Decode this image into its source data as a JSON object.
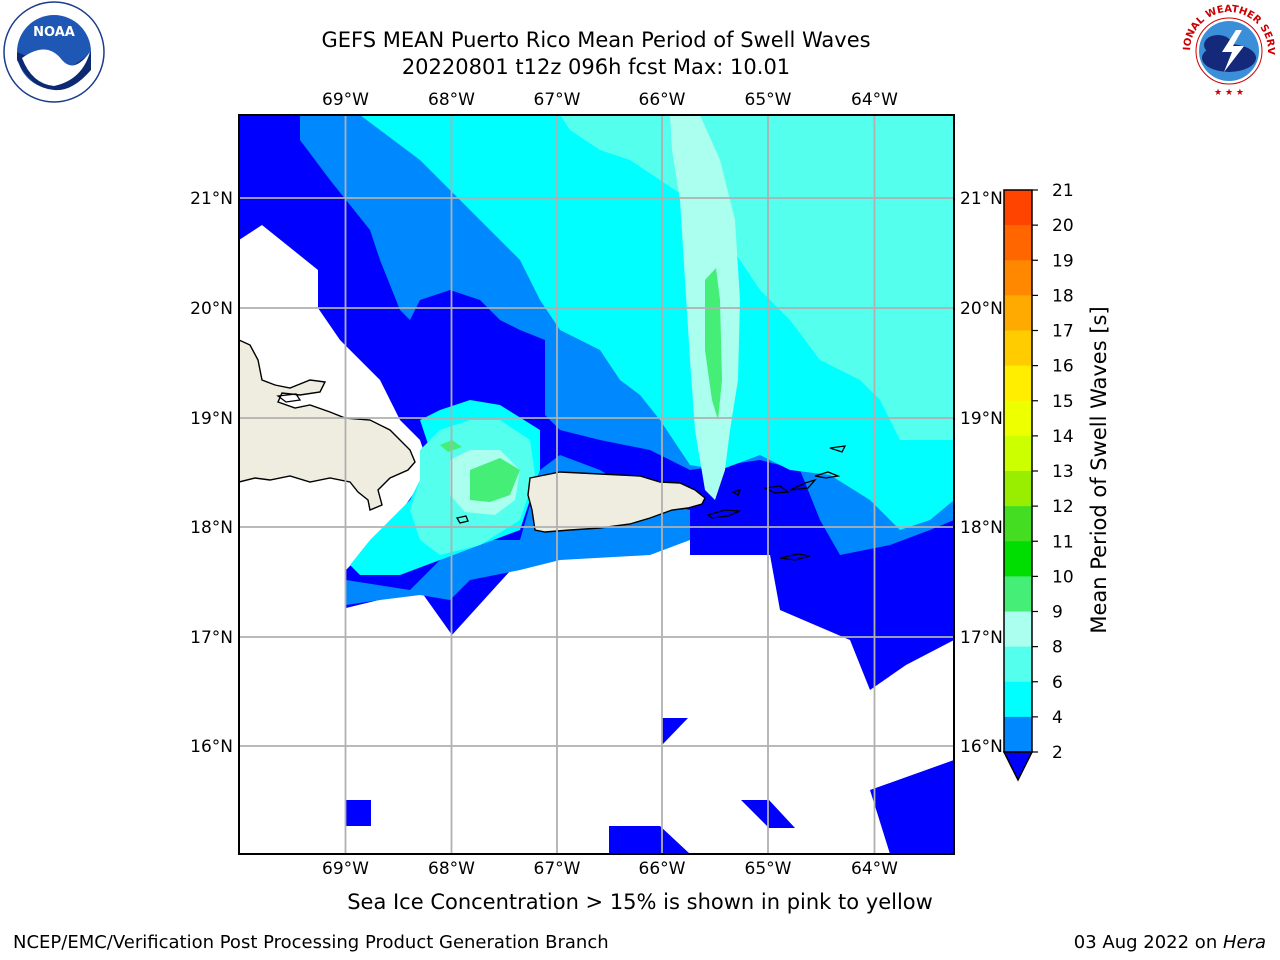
{
  "title": {
    "line1": "GEFS MEAN Puerto Rico Mean Period of Swell Waves",
    "line2": "20220801 t12z 096h fcst   Max: 10.01"
  },
  "map": {
    "lon_labels": [
      "69°W",
      "68°W",
      "67°W",
      "66°W",
      "65°W",
      "64°W"
    ],
    "lat_labels": [
      "21°N",
      "20°N",
      "19°N",
      "18°N",
      "17°N",
      "16°N"
    ],
    "lon_range": [
      -70.0,
      -63.25
    ],
    "lat_range": [
      15.0,
      21.75
    ],
    "land_color": "#EEEDDF",
    "missing_color": "#FFFFFF"
  },
  "colorbar": {
    "label": "Mean Period of Swell Waves [s]",
    "ticks": [
      "21",
      "20",
      "19",
      "18",
      "17",
      "16",
      "15",
      "14",
      "13",
      "12",
      "11",
      "10",
      "9",
      "8",
      "6",
      "4",
      "2"
    ],
    "colors": [
      "#ff0000",
      "#ff2000",
      "#ff4400",
      "#ff6600",
      "#ff8800",
      "#ffaa00",
      "#ffcc00",
      "#ffee00",
      "#eeff00",
      "#ccff00",
      "#99ee00",
      "#44dd22",
      "#00dd00",
      "#44ee77",
      "#aaffee",
      "#55ffee",
      "#00ffff",
      "#0088ff",
      "#0000ff"
    ]
  },
  "notes": {
    "sea_ice": "Sea Ice Concentration > 15% is shown in pink to yellow",
    "footer_left": "NCEP/EMC/Verification Post Processing Product Generation Branch",
    "footer_right_date": "03 Aug 2022 on ",
    "footer_right_host": "Hera"
  },
  "logos": {
    "left": "noaa-logo",
    "right": "nws-logo"
  },
  "logo_text": {
    "noaa": "NOAA",
    "nws": "NATIONAL WEATHER SERVICE"
  }
}
